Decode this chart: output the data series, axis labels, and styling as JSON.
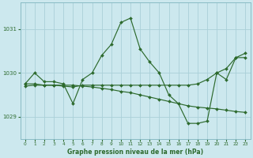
{
  "title": "Graphe pression niveau de la mer (hPa)",
  "bg_color": "#cce8ee",
  "grid_color": "#aad0d8",
  "line_color": "#2d6a2d",
  "xlim": [
    -0.5,
    23.5
  ],
  "ylim": [
    1028.5,
    1031.6
  ],
  "yticks": [
    1029,
    1030,
    1031
  ],
  "xticks": [
    0,
    1,
    2,
    3,
    4,
    5,
    6,
    7,
    8,
    9,
    10,
    11,
    12,
    13,
    14,
    15,
    16,
    17,
    18,
    19,
    20,
    21,
    22,
    23
  ],
  "series1_x": [
    0,
    1,
    2,
    3,
    4,
    5,
    6,
    7,
    8,
    9,
    10,
    11,
    12,
    13,
    14,
    15,
    16,
    17,
    18,
    19,
    20,
    21,
    22,
    23
  ],
  "series1_y": [
    1029.75,
    1030.0,
    1029.8,
    1029.8,
    1029.75,
    1029.3,
    1029.85,
    1030.0,
    1030.4,
    1030.65,
    1031.15,
    1031.25,
    1030.55,
    1030.25,
    1030.0,
    1029.5,
    1029.3,
    1028.85,
    1028.85,
    1028.9,
    1030.0,
    1029.85,
    1030.35,
    1030.35
  ],
  "series2_x": [
    0,
    1,
    2,
    3,
    4,
    5,
    6,
    7,
    8,
    9,
    10,
    11,
    12,
    13,
    14,
    15,
    16,
    17,
    18,
    19,
    20,
    21,
    22,
    23
  ],
  "series2_y": [
    1029.75,
    1029.75,
    1029.72,
    1029.72,
    1029.72,
    1029.72,
    1029.7,
    1029.68,
    1029.65,
    1029.62,
    1029.58,
    1029.55,
    1029.5,
    1029.45,
    1029.4,
    1029.35,
    1029.3,
    1029.25,
    1029.22,
    1029.2,
    1029.18,
    1029.15,
    1029.12,
    1029.1
  ],
  "series3_x": [
    0,
    1,
    2,
    3,
    4,
    5,
    6,
    7,
    8,
    9,
    10,
    11,
    12,
    13,
    14,
    15,
    16,
    17,
    18,
    19,
    20,
    21,
    22,
    23
  ],
  "series3_y": [
    1029.7,
    1029.72,
    1029.72,
    1029.72,
    1029.7,
    1029.68,
    1029.72,
    1029.72,
    1029.72,
    1029.72,
    1029.72,
    1029.72,
    1029.72,
    1029.72,
    1029.72,
    1029.72,
    1029.72,
    1029.72,
    1029.75,
    1029.85,
    1030.0,
    1030.1,
    1030.35,
    1030.45
  ]
}
